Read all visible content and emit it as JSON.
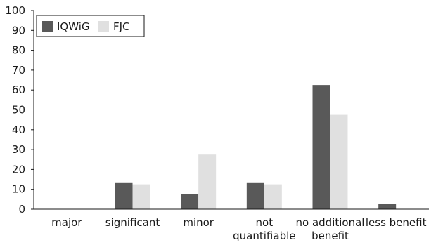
{
  "chart_data": {
    "type": "bar",
    "categories": [
      [
        "major"
      ],
      [
        "significant"
      ],
      [
        "minor"
      ],
      [
        "not",
        "quantifiable"
      ],
      [
        "no additional",
        "benefit"
      ],
      [
        "less benefit"
      ]
    ],
    "series": [
      {
        "name": "IQWiG",
        "color": "#595959",
        "values": [
          0,
          13.5,
          7.5,
          13.5,
          62.5,
          2.5
        ]
      },
      {
        "name": "FJC",
        "color": "#e0e0e0",
        "values": [
          0,
          12.5,
          27.5,
          12.5,
          47.5,
          0
        ]
      }
    ],
    "ylim": [
      0,
      100
    ],
    "yticks": [
      0,
      10,
      20,
      30,
      40,
      50,
      60,
      70,
      80,
      90,
      100
    ],
    "grid": false,
    "legend_position": "top-left",
    "title": "",
    "xlabel": "",
    "ylabel": ""
  }
}
